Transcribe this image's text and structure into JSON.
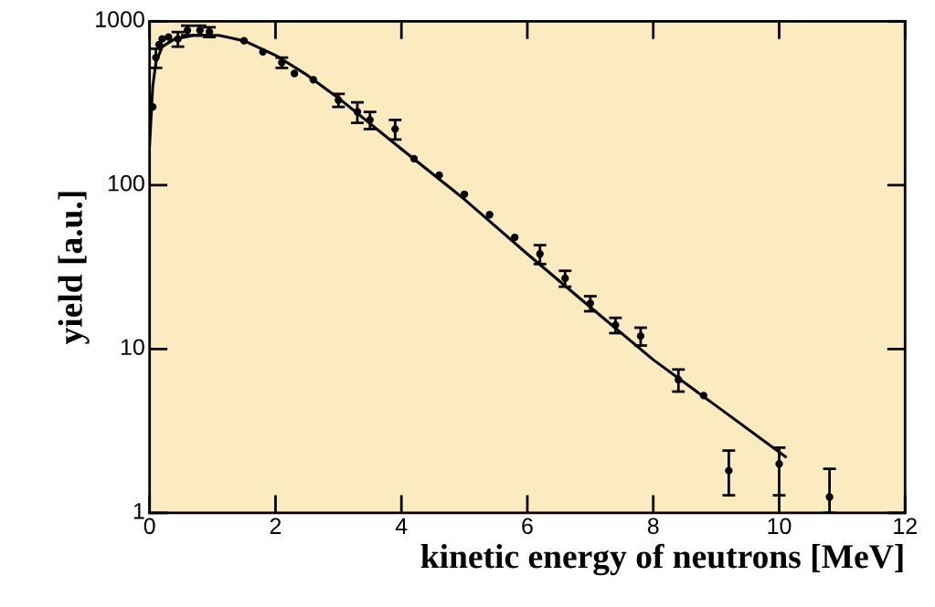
{
  "chart_data": {
    "type": "scatter",
    "xlabel": "kinetic energy of neutrons [MeV]",
    "ylabel": "yield [a.u.]",
    "log": "y",
    "xlim": [
      0,
      12
    ],
    "ylim": [
      1,
      1000
    ],
    "xticks": [
      0,
      2,
      4,
      6,
      8,
      10,
      12
    ],
    "yticks": [
      1,
      10,
      100,
      1000
    ],
    "grid": false,
    "legend": false,
    "series": [
      {
        "type": "line",
        "color": "#000000",
        "line_style": "solid",
        "marker": "none",
        "x": [
          0.0,
          0.05,
          0.1,
          0.2,
          0.4,
          0.7,
          1.1,
          1.5,
          2.0,
          2.5,
          3.0,
          4.0,
          5.0,
          6.0,
          7.0,
          8.0,
          9.0,
          10.1
        ],
        "values": [
          175,
          400,
          560,
          700,
          780,
          820,
          820,
          760,
          620,
          470,
          340,
          166,
          82,
          38,
          18,
          8.6,
          4.5,
          2.2
        ]
      },
      {
        "color": "#000000",
        "marker": "circle",
        "x": [
          0.05,
          0.1,
          0.15,
          0.2,
          0.3,
          0.45,
          0.6,
          0.8,
          0.95,
          1.5,
          1.8,
          2.1,
          2.3,
          2.6,
          3.0,
          3.3,
          3.5,
          3.9,
          4.2,
          4.6,
          5.0,
          5.4,
          5.8,
          6.2,
          6.6,
          7.0,
          7.4,
          7.8,
          8.4,
          8.8,
          9.2,
          10.0,
          10.8
        ],
        "values": [
          300,
          600,
          720,
          780,
          800,
          780,
          880,
          880,
          860,
          760,
          650,
          560,
          480,
          440,
          330,
          280,
          250,
          220,
          145,
          115,
          88,
          66,
          48,
          38,
          27,
          19,
          14,
          12,
          6.5,
          5.2,
          1.81,
          1.99,
          1.25
        ],
        "errors": [
          null,
          80,
          null,
          null,
          null,
          80,
          60,
          60,
          60,
          null,
          null,
          40,
          null,
          null,
          30,
          40,
          30,
          30,
          null,
          null,
          null,
          null,
          null,
          5,
          3,
          2,
          1.5,
          1.5,
          1.0,
          null,
          [
            1.28,
            2.4
          ],
          [
            1.28,
            2.5
          ],
          [
            1.0,
            1.86
          ]
        ]
      }
    ]
  }
}
